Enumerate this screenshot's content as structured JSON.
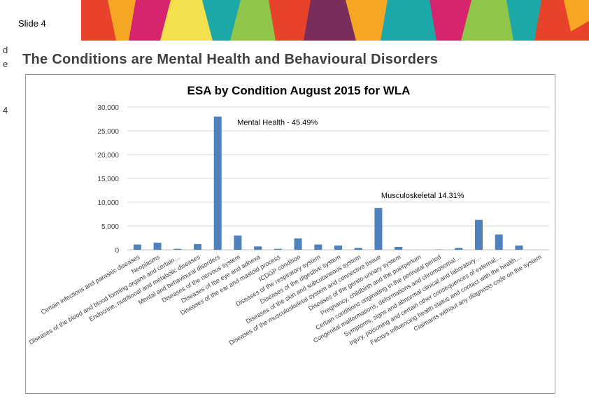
{
  "slide": {
    "label": "Slide 4",
    "side_fragment": "d\ne",
    "slide_number": "4",
    "title": "The Conditions are Mental Health and Behavioural Disorders"
  },
  "colors": {
    "bar": "#4f81bd",
    "banner": [
      "#e7432b",
      "#f5a623",
      "#d6246e",
      "#1ca7a8",
      "#8fc649",
      "#7a2d5b",
      "#f4e04d"
    ]
  },
  "chart_data": {
    "type": "bar",
    "title": "ESA by Condition August 2015 for WLA",
    "xlabel": "",
    "ylabel": "",
    "ylim": [
      0,
      30000
    ],
    "yticks": [
      "0",
      "5,000",
      "10,000",
      "15,000",
      "20,000",
      "25,000",
      "30,000"
    ],
    "grid": true,
    "categories": [
      "Certain infections and parasitic diseases",
      "Neoplasms",
      "Diseases of the blood and blood forming organs and certain…",
      "Endocrine, nutritional and metabolic diseases",
      "Mental and behavioural disorders",
      "Diseases of the nervous system",
      "Diseases of the eye and adnexa",
      "Diseases of the ear and mastoid process",
      "ICDGP condition",
      "Diseases of the respiratory system",
      "Diseases of the digestive system",
      "Diseases of the skin and subcutaneous system",
      "Diseases of the musculoskeletal system and connective tissue",
      "Diseases of the genito-urinary system",
      "Pregnancy, childbirth and the puerperium",
      "Certain conditions originating in the perinatal period",
      "Congenital malformations, deformations and chromosomal…",
      "Symptoms, signs and abnormal clinical and laboratory…",
      "Injury, poisoning and certain other consequences of external…",
      "Factors influencing health status and contact with the health…",
      "Claimants without any diagnosis code on the system"
    ],
    "values": [
      1100,
      1500,
      200,
      1200,
      28000,
      3000,
      700,
      200,
      2400,
      1100,
      900,
      400,
      8800,
      600,
      0,
      50,
      400,
      6300,
      3200,
      900,
      0
    ],
    "annotations": [
      {
        "text": "Mental Health - 45.49%"
      },
      {
        "text": "Musculoskeletal 14.31%"
      }
    ]
  }
}
